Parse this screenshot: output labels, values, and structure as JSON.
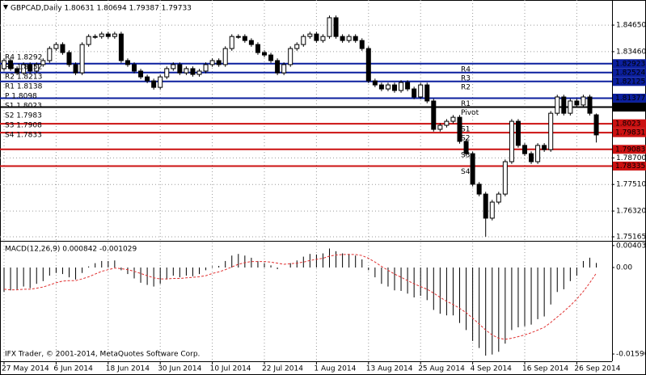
{
  "chart_data": [
    {
      "type": "candlestick",
      "title": "GBPCAD,Daily  1.80631 1.80694 1.79387 1.79733",
      "categories": [
        "27 May 2014",
        null,
        null,
        null,
        null,
        null,
        null,
        null,
        "6 Jun 2014",
        null,
        null,
        null,
        null,
        null,
        null,
        null,
        "18 Jun 2014",
        null,
        null,
        null,
        null,
        null,
        null,
        null,
        "30 Jun 2014",
        null,
        null,
        null,
        null,
        null,
        null,
        null,
        "10 Jul 2014",
        null,
        null,
        null,
        null,
        null,
        null,
        null,
        "22 Jul 2014",
        null,
        null,
        null,
        null,
        null,
        null,
        null,
        "1 Aug 2014",
        null,
        null,
        null,
        null,
        null,
        null,
        null,
        "13 Aug 2014",
        null,
        null,
        null,
        null,
        null,
        null,
        null,
        "25 Aug 2014",
        null,
        null,
        null,
        null,
        null,
        null,
        null,
        "4 Sep 2014",
        null,
        null,
        null,
        null,
        null,
        null,
        null,
        "16 Sep 2014",
        null,
        null,
        null,
        null,
        null,
        null,
        null,
        "26 Sep 2014",
        null,
        null,
        null
      ],
      "open": [
        1.827,
        1.8306,
        1.827,
        1.8251,
        1.8288,
        1.8259,
        1.8288,
        1.8306,
        1.836,
        1.8378,
        1.8342,
        1.8288,
        1.8251,
        1.8378,
        1.8414,
        1.8414,
        1.8425,
        1.8414,
        1.8425,
        1.8306,
        1.8288,
        1.8259,
        1.8233,
        1.8215,
        1.8186,
        1.8233,
        1.827,
        1.8288,
        1.8251,
        1.827,
        1.8244,
        1.8259,
        1.8288,
        1.8306,
        1.8288,
        1.836,
        1.8414,
        1.8414,
        1.8396,
        1.8378,
        1.8342,
        1.8331,
        1.8306,
        1.8251,
        1.8288,
        1.836,
        1.8378,
        1.8414,
        1.8425,
        1.8396,
        1.8414,
        1.8498,
        1.8414,
        1.8396,
        1.8414,
        1.8396,
        1.836,
        1.8215,
        1.8197,
        1.8179,
        1.8197,
        1.8172,
        1.8208,
        1.8179,
        1.8143,
        1.8197,
        1.8125,
        1.7998,
        1.8016,
        1.8034,
        1.8052,
        1.7944,
        1.7889,
        1.7752,
        1.7708,
        1.76,
        1.7672,
        1.7708,
        1.7853,
        1.8034,
        1.7926,
        1.7889,
        1.7853,
        1.7926,
        1.7907,
        1.807,
        1.8143,
        1.807,
        1.8125,
        1.8107,
        1.8143,
        1.8063
      ],
      "high": [
        1.8316,
        1.8316,
        1.828,
        1.8298,
        1.8298,
        1.8298,
        1.8316,
        1.837,
        1.8388,
        1.8388,
        1.8352,
        1.8298,
        1.8388,
        1.8424,
        1.8424,
        1.8435,
        1.8435,
        1.8435,
        1.8435,
        1.8316,
        1.8298,
        1.8269,
        1.8243,
        1.8225,
        1.8243,
        1.828,
        1.8298,
        1.8298,
        1.828,
        1.828,
        1.8269,
        1.8298,
        1.8316,
        1.8316,
        1.837,
        1.8424,
        1.8424,
        1.8424,
        1.8406,
        1.8388,
        1.8352,
        1.8341,
        1.8316,
        1.8298,
        1.837,
        1.8388,
        1.8424,
        1.8435,
        1.8435,
        1.8424,
        1.8508,
        1.8508,
        1.8424,
        1.8424,
        1.8424,
        1.8406,
        1.837,
        1.8225,
        1.8207,
        1.8207,
        1.8207,
        1.8218,
        1.8218,
        1.8189,
        1.8207,
        1.8207,
        1.8135,
        1.8026,
        1.8044,
        1.8062,
        1.8062,
        1.7954,
        1.7899,
        1.7762,
        1.7718,
        1.7682,
        1.7718,
        1.7863,
        1.8044,
        1.8044,
        1.7936,
        1.7899,
        1.7936,
        1.7936,
        1.808,
        1.8153,
        1.8153,
        1.8135,
        1.8135,
        1.8153,
        1.8153,
        1.8069
      ],
      "low": [
        1.826,
        1.826,
        1.8241,
        1.8241,
        1.8249,
        1.8249,
        1.8278,
        1.8296,
        1.835,
        1.8332,
        1.8278,
        1.8241,
        1.8241,
        1.8368,
        1.8404,
        1.8404,
        1.8404,
        1.8404,
        1.8296,
        1.8278,
        1.8249,
        1.8223,
        1.8205,
        1.8176,
        1.8176,
        1.8223,
        1.826,
        1.8241,
        1.8241,
        1.8234,
        1.8234,
        1.8249,
        1.8278,
        1.8278,
        1.8278,
        1.835,
        1.8404,
        1.8386,
        1.8368,
        1.8332,
        1.8321,
        1.8296,
        1.8241,
        1.8241,
        1.8278,
        1.835,
        1.8368,
        1.8404,
        1.8386,
        1.8386,
        1.8404,
        1.8404,
        1.8386,
        1.8386,
        1.8386,
        1.835,
        1.8205,
        1.8187,
        1.8169,
        1.8169,
        1.8162,
        1.8162,
        1.8169,
        1.8133,
        1.8133,
        1.8115,
        1.7988,
        1.7988,
        1.8006,
        1.8024,
        1.7934,
        1.7879,
        1.7742,
        1.7698,
        1.7517,
        1.759,
        1.7662,
        1.7698,
        1.7843,
        1.7916,
        1.7879,
        1.7843,
        1.7843,
        1.7897,
        1.7897,
        1.806,
        1.806,
        1.806,
        1.8097,
        1.8097,
        1.806,
        1.7939
      ],
      "close": [
        1.8306,
        1.827,
        1.8251,
        1.8288,
        1.8259,
        1.8288,
        1.8306,
        1.836,
        1.8378,
        1.8342,
        1.8288,
        1.8251,
        1.8378,
        1.8414,
        1.8414,
        1.8425,
        1.8414,
        1.8425,
        1.8306,
        1.8288,
        1.8259,
        1.8233,
        1.8215,
        1.8186,
        1.8233,
        1.827,
        1.8288,
        1.8251,
        1.827,
        1.8244,
        1.8259,
        1.8288,
        1.8306,
        1.8288,
        1.836,
        1.8414,
        1.8414,
        1.8396,
        1.8378,
        1.8342,
        1.8331,
        1.8306,
        1.8251,
        1.8288,
        1.836,
        1.8378,
        1.8414,
        1.8425,
        1.8396,
        1.8414,
        1.8498,
        1.8414,
        1.8396,
        1.8414,
        1.8396,
        1.836,
        1.8215,
        1.8197,
        1.8179,
        1.8197,
        1.8172,
        1.8208,
        1.8179,
        1.8143,
        1.8197,
        1.8125,
        1.7998,
        1.8016,
        1.8034,
        1.8052,
        1.7944,
        1.7889,
        1.7752,
        1.7708,
        1.76,
        1.7672,
        1.7708,
        1.7853,
        1.8034,
        1.7926,
        1.7889,
        1.7853,
        1.7926,
        1.7907,
        1.807,
        1.8143,
        1.807,
        1.8125,
        1.8107,
        1.8143,
        1.807,
        1.7973
      ],
      "up_color": "#ffffff",
      "down_color": "#000000",
      "ylim": [
        1.7502,
        1.8563
      ],
      "yticks": [
        {
          "value": 1.8465,
          "label": "1.84650"
        },
        {
          "value": 1.8346,
          "label": "1.83460"
        },
        {
          "value": 1.787,
          "label": "1.78700"
        },
        {
          "value": 1.7751,
          "label": "1.77510"
        },
        {
          "value": 1.7632,
          "label": "1.76320"
        },
        1.75165
      ],
      "grid": true,
      "levels": [
        {
          "name": "R4",
          "label": "R4 1.8292",
          "value": 1.82923,
          "color": "#0b1f9e"
        },
        {
          "name": "R3",
          "label": "R3 1.8252",
          "value": 1.82524,
          "color": "#0b1f9e"
        },
        {
          "name": "R2",
          "label": "R2 1.8213",
          "value": 1.82125,
          "color": "#0b1f9e"
        },
        {
          "name": "R1",
          "label": "R1 1.8138",
          "value": 1.81377,
          "color": "#0b1f9e"
        },
        {
          "name": "Pivot",
          "label": "P 1.8098",
          "value": 1.80978,
          "color": "#000000"
        },
        {
          "name": "S1",
          "label": "S1 1.8023",
          "value": 1.8023,
          "color": "#cc1111"
        },
        {
          "name": "S2",
          "label": "S2 1.7983",
          "value": 1.79831,
          "color": "#cc1111"
        },
        {
          "name": "S3",
          "label": "S3 1.7908",
          "value": 1.79083,
          "color": "#cc1111"
        },
        {
          "name": "S4",
          "label": "S4 1.7833",
          "value": 1.78335,
          "color": "#cc1111"
        }
      ]
    },
    {
      "type": "macd",
      "title": "MACD(12,26,9) 0.000842 -0.001029",
      "histogram": {
        "color": "#000000",
        "values": [
          -0.0045,
          -0.0042,
          -0.004,
          -0.0035,
          -0.0038,
          -0.003,
          -0.0025,
          -0.0015,
          -0.001,
          -0.0012,
          -0.0018,
          -0.0022,
          -0.001,
          0.0002,
          0.0008,
          0.0012,
          0.0012,
          0.0013,
          -0.0005,
          -0.0012,
          -0.002,
          -0.0028,
          -0.0032,
          -0.0035,
          -0.003,
          -0.0022,
          -0.0015,
          -0.0018,
          -0.0015,
          -0.0016,
          -0.0012,
          -0.0005,
          0.0002,
          0.0003,
          0.0012,
          0.0022,
          0.0025,
          0.0022,
          0.0018,
          0.0012,
          0.0008,
          0.0004,
          -0.0003,
          0,
          0.0008,
          0.0013,
          0.002,
          0.0025,
          0.0024,
          0.0026,
          0.0035,
          0.003,
          0.0026,
          0.0025,
          0.0022,
          0.0015,
          -0.0005,
          -0.0018,
          -0.003,
          -0.0035,
          -0.0042,
          -0.0043,
          -0.0048,
          -0.0055,
          -0.0052,
          -0.006,
          -0.0078,
          -0.0085,
          -0.0088,
          -0.0088,
          -0.0102,
          -0.0115,
          -0.0135,
          -0.0148,
          -0.0162,
          -0.016,
          -0.0155,
          -0.014,
          -0.0115,
          -0.011,
          -0.0108,
          -0.0105,
          -0.0095,
          -0.009,
          -0.0068,
          -0.0045,
          -0.004,
          -0.0025,
          -0.0015,
          0.0012,
          0.0018,
          0.000842
        ]
      },
      "signal": {
        "color": "#e03030",
        "values": [
          -0.004,
          -0.0041,
          -0.0041,
          -0.004,
          -0.004,
          -0.0038,
          -0.0036,
          -0.0032,
          -0.0028,
          -0.0025,
          -0.0024,
          -0.0024,
          -0.0021,
          -0.0017,
          -0.0012,
          -0.0007,
          -0.0004,
          -0.0001,
          -0.0002,
          -0.0004,
          -0.0007,
          -0.0011,
          -0.0015,
          -0.0019,
          -0.0021,
          -0.0021,
          -0.002,
          -0.002,
          -0.0019,
          -0.0018,
          -0.0017,
          -0.0015,
          -0.0011,
          -0.0008,
          -0.0004,
          0.0001,
          0.0006,
          0.0009,
          0.0011,
          0.0011,
          0.0011,
          0.001,
          0.0008,
          0.0006,
          0.0007,
          0.0008,
          0.001,
          0.0013,
          0.0015,
          0.0017,
          0.0021,
          0.0023,
          0.0024,
          0.0024,
          0.0024,
          0.0022,
          0.0017,
          0.001,
          0.0002,
          -0.0005,
          -0.0012,
          -0.0018,
          -0.0024,
          -0.003,
          -0.0035,
          -0.004,
          -0.0047,
          -0.0055,
          -0.0062,
          -0.0068,
          -0.0075,
          -0.0083,
          -0.0093,
          -0.0104,
          -0.0115,
          -0.0124,
          -0.013,
          -0.0132,
          -0.013,
          -0.0127,
          -0.0124,
          -0.012,
          -0.0115,
          -0.011,
          -0.0101,
          -0.0091,
          -0.0081,
          -0.007,
          -0.0058,
          -0.0044,
          -0.0028,
          -0.001029
        ]
      },
      "ylim": [
        -0.01724,
        0.00461
      ],
      "yticks": [
        0.004037,
        {
          "value": 0,
          "label": "0.00"
        },
        -0.015907
      ],
      "watermark": "IFX Trader, © 2001-2014, MetaQuotes Software Corp."
    }
  ]
}
